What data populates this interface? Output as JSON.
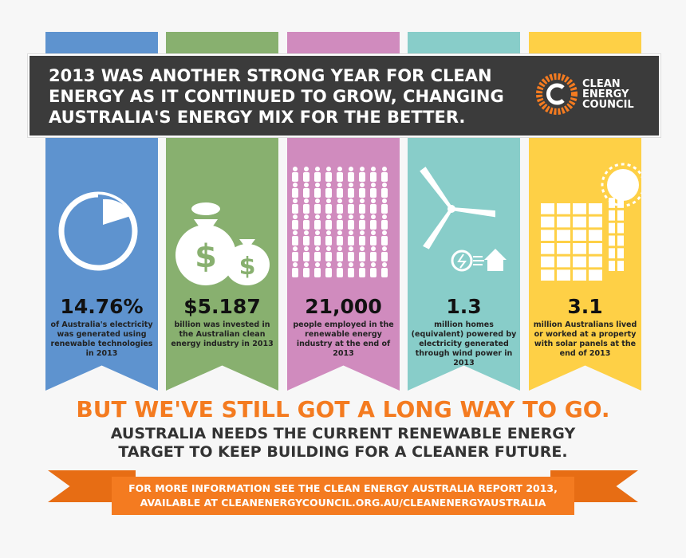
{
  "header": {
    "title": "2013 WAS ANOTHER STRONG YEAR FOR CLEAN ENERGY AS IT CONTINUED TO GROW, CHANGING AUSTRALIA'S ENERGY MIX FOR THE BETTER.",
    "logo": "CLEAN ENERGY COUNCIL"
  },
  "columns": [
    {
      "color": "#5e93cf",
      "icon": "pie-chart-icon",
      "stat": "14.76%",
      "desc": "of Australia's electricity was generated using renewable technologies in 2013"
    },
    {
      "color": "#88b06f",
      "icon": "money-bags-icon",
      "stat": "$5.187",
      "desc": "billion was invested in the Australian clean energy industry in 2013"
    },
    {
      "color": "#d08bbe",
      "icon": "people-icon",
      "stat": "21,000",
      "desc": "people employed in the renewable energy industry at the end of 2013"
    },
    {
      "color": "#88cdc9",
      "icon": "wind-turbine-icon",
      "stat": "1.3",
      "desc": "million homes (equivalent) powered by electricity generated through wind power in 2013"
    },
    {
      "color": "#fed046",
      "icon": "solar-panel-icon",
      "stat": "3.1",
      "desc": "million Australians lived or worked at a property with solar panels at the end of 2013"
    }
  ],
  "headline": "BUT WE'VE STILL GOT A LONG WAY TO GO.",
  "subheadline": "AUSTRALIA NEEDS THE CURRENT RENEWABLE ENERGY TARGET TO KEEP BUILDING FOR A CLEANER FUTURE.",
  "footer": {
    "line1": "FOR MORE INFORMATION SEE THE CLEAN ENERGY AUSTRALIA REPORT 2013,",
    "line2": "AVAILABLE AT CLEANENERGYCOUNCIL.ORG.AU/CLEANENERGYAUSTRALIA"
  },
  "accent": "#f47b20"
}
